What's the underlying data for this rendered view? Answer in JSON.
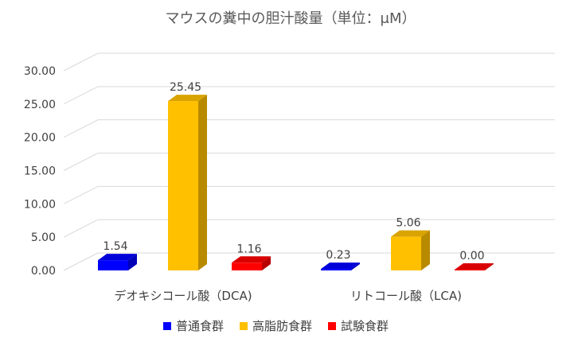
{
  "chart_data": {
    "type": "bar",
    "title": "マウスの糞中の胆汁酸量（単位：μM）",
    "categories": [
      "デオキシコール酸（DCA)",
      "リトコール酸（LCA)"
    ],
    "series": [
      {
        "name": "普通食群",
        "values": [
          1.54,
          0.23
        ],
        "labels": [
          "1.54",
          "0.23"
        ],
        "color": "#0000ff"
      },
      {
        "name": "高脂肪食群",
        "values": [
          25.45,
          5.06
        ],
        "labels": [
          "25.45",
          "5.06"
        ],
        "color": "#ffc000"
      },
      {
        "name": "試験食群",
        "values": [
          1.16,
          0.0
        ],
        "labels": [
          "1.16",
          "0.00"
        ],
        "color": "#ff0000"
      }
    ],
    "yticks": [
      "0.00",
      "5.00",
      "10.00",
      "15.00",
      "20.00",
      "25.00",
      "30.00"
    ],
    "ylim": [
      0,
      30
    ],
    "grid": true,
    "legend_position": "bottom",
    "style": "3d-column"
  }
}
